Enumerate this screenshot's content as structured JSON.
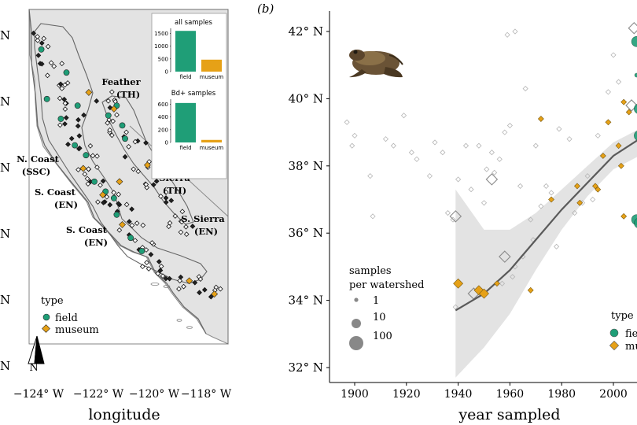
{
  "panel_b_label": "(b)",
  "chart_data": [
    {
      "type": "scatter",
      "panel": "map",
      "xlabel": "longitude",
      "ylabel": "",
      "x_ticks": [
        "−124° W",
        "−122° W",
        "−120° W",
        "−118° W"
      ],
      "y_ticks": [
        "N",
        "N",
        "N",
        "N",
        "N",
        "N"
      ],
      "region_labels": [
        "Feather",
        "(TH)",
        "N. Coast",
        "(SSC)",
        "N.",
        "Sierra",
        "(TH)",
        "S. Coast",
        "(EN)",
        "S. Sierra",
        "(EN)",
        "S. Coast",
        "(EN)"
      ],
      "north_arrow": "N",
      "legend": {
        "title": "type",
        "entries": [
          "field",
          "museum"
        ]
      },
      "colors": {
        "field": "#1f9e77",
        "museum": "#e6a117",
        "outline": "#333333",
        "land": "#e3e3e3"
      },
      "field_points": [
        [
          -123.9,
          41.6
        ],
        [
          -123.7,
          40.1
        ],
        [
          -123.2,
          39.5
        ],
        [
          -122.7,
          38.7
        ],
        [
          -122.3,
          38.4
        ],
        [
          -122.0,
          37.6
        ],
        [
          -121.6,
          37.3
        ],
        [
          -121.2,
          36.6
        ],
        [
          -120.7,
          35.9
        ],
        [
          -121.5,
          39.6
        ],
        [
          -121.2,
          39.9
        ],
        [
          -123.0,
          40.9
        ],
        [
          -122.6,
          39.9
        ],
        [
          -121.3,
          37.1
        ],
        [
          -120.3,
          35.5
        ],
        [
          -121.0,
          39.3
        ],
        [
          -120.9,
          38.9
        ]
      ],
      "museum_points": [
        [
          -122.2,
          40.3
        ],
        [
          -121.3,
          39.8
        ],
        [
          -121.1,
          37.6
        ],
        [
          -120.1,
          38.1
        ],
        [
          -121.0,
          36.3
        ],
        [
          -117.7,
          34.2
        ],
        [
          -118.6,
          34.6
        ],
        [
          -122.4,
          38.0
        ],
        [
          -121.7,
          37.2
        ]
      ],
      "inset_all_samples": {
        "title": "all samples",
        "categories": [
          "field",
          "museum"
        ],
        "values": [
          1600,
          470
        ],
        "yticks": [
          0,
          500,
          1000,
          1500
        ],
        "ylim": [
          0,
          1700
        ]
      },
      "inset_bd_samples": {
        "title": "Bd+ samples",
        "categories": [
          "field",
          "museum"
        ],
        "values": [
          620,
          40
        ],
        "yticks": [
          0,
          200,
          400,
          600
        ],
        "ylim": [
          0,
          680
        ]
      }
    },
    {
      "type": "scatter",
      "panel": "time",
      "xlabel": "year sampled",
      "ylabel": "",
      "xlim": [
        1893,
        2012
      ],
      "ylim": [
        31.5,
        42.6
      ],
      "x_ticks": [
        1900,
        1920,
        1940,
        1960,
        1980,
        2000
      ],
      "y_ticks": [
        "42° N",
        "40° N",
        "38° N",
        "36° N",
        "34° N",
        "32° N"
      ],
      "y_tick_values": [
        42,
        40,
        38,
        36,
        34,
        32
      ],
      "size_legend": {
        "title_line1": "samples",
        "title_line2": "per watershed",
        "labels": [
          "1",
          "10",
          "100"
        ]
      },
      "legend": {
        "title": "type",
        "entries": [
          "field",
          "museum"
        ]
      },
      "colors": {
        "field": "#1f9e77",
        "museum": "#e6a117",
        "trend": "#5a5a5a",
        "ribbon": "#d9d9d9"
      },
      "field_points": [
        [
          2009,
          41.7
        ],
        [
          2010,
          39.7
        ],
        [
          2010,
          38.9
        ],
        [
          2009,
          36.4
        ],
        [
          2010,
          36.3
        ],
        [
          2009,
          40.7
        ]
      ],
      "museum_points": [
        [
          1940,
          34.5
        ],
        [
          1948,
          34.3
        ],
        [
          1950,
          34.2
        ],
        [
          1955,
          34.5
        ],
        [
          1968,
          34.3
        ],
        [
          1972,
          39.4
        ],
        [
          1976,
          37.0
        ],
        [
          1986,
          37.4
        ],
        [
          1987,
          36.9
        ],
        [
          1993,
          37.4
        ],
        [
          1994,
          37.3
        ],
        [
          1996,
          38.3
        ],
        [
          1998,
          39.3
        ],
        [
          2002,
          38.6
        ],
        [
          2003,
          38.0
        ],
        [
          2004,
          36.5
        ],
        [
          2004,
          39.9
        ],
        [
          2006,
          39.6
        ]
      ],
      "gray_points": [
        [
          1897,
          39.3
        ],
        [
          1899,
          38.6
        ],
        [
          1906,
          37.7
        ],
        [
          1907,
          36.5
        ],
        [
          1912,
          38.8
        ],
        [
          1915,
          38.6
        ],
        [
          1919,
          39.5
        ],
        [
          1922,
          38.4
        ],
        [
          1929,
          37.7
        ],
        [
          1931,
          38.7
        ],
        [
          1934,
          38.4
        ],
        [
          1936,
          36.6
        ],
        [
          1938,
          36.4
        ],
        [
          1940,
          37.6
        ],
        [
          1945,
          37.3
        ],
        [
          1948,
          38.6
        ],
        [
          1951,
          37.9
        ],
        [
          1954,
          37.8
        ],
        [
          1956,
          38.2
        ],
        [
          1958,
          39.0
        ],
        [
          1959,
          41.9
        ],
        [
          1962,
          42.0
        ],
        [
          1964,
          37.4
        ],
        [
          1966,
          40.3
        ],
        [
          1968,
          36.4
        ],
        [
          1970,
          38.6
        ],
        [
          1972,
          36.8
        ],
        [
          1976,
          37.2
        ],
        [
          1978,
          35.6
        ],
        [
          1983,
          38.8
        ],
        [
          1988,
          36.9
        ],
        [
          1990,
          37.7
        ],
        [
          1994,
          38.9
        ],
        [
          1998,
          40.2
        ],
        [
          2000,
          41.3
        ],
        [
          2002,
          40.5
        ],
        [
          1953,
          38.4
        ],
        [
          1960,
          39.2
        ],
        [
          1939,
          33.8
        ],
        [
          1957,
          34.5
        ],
        [
          1961,
          34.7
        ],
        [
          1962,
          35.0
        ],
        [
          1965,
          35.3
        ],
        [
          1969,
          35.8
        ],
        [
          1974,
          37.4
        ],
        [
          1979,
          39.1
        ],
        [
          1985,
          36.6
        ],
        [
          1992,
          37.0
        ],
        [
          1900,
          38.9
        ],
        [
          1924,
          38.2
        ],
        [
          1943,
          38.6
        ],
        [
          1950,
          36.9
        ]
      ],
      "large_gray_points": [
        [
          1939,
          36.5
        ],
        [
          1958,
          35.3
        ],
        [
          1953,
          37.6
        ],
        [
          1946,
          34.2
        ],
        [
          2008,
          42.1
        ],
        [
          2007,
          39.8
        ]
      ],
      "trend_x": [
        1939,
        1950,
        1960,
        1970,
        1980,
        1990,
        2000,
        2010
      ],
      "trend_y": [
        33.7,
        34.2,
        34.9,
        35.8,
        36.7,
        37.5,
        38.3,
        38.8
      ],
      "ribbon_upper": [
        37.3,
        36.1,
        36.1,
        36.6,
        37.3,
        38.0,
        38.7,
        39.1
      ],
      "ribbon_lower": [
        31.7,
        32.6,
        33.6,
        34.9,
        36.1,
        37.1,
        37.9,
        38.3
      ]
    }
  ]
}
